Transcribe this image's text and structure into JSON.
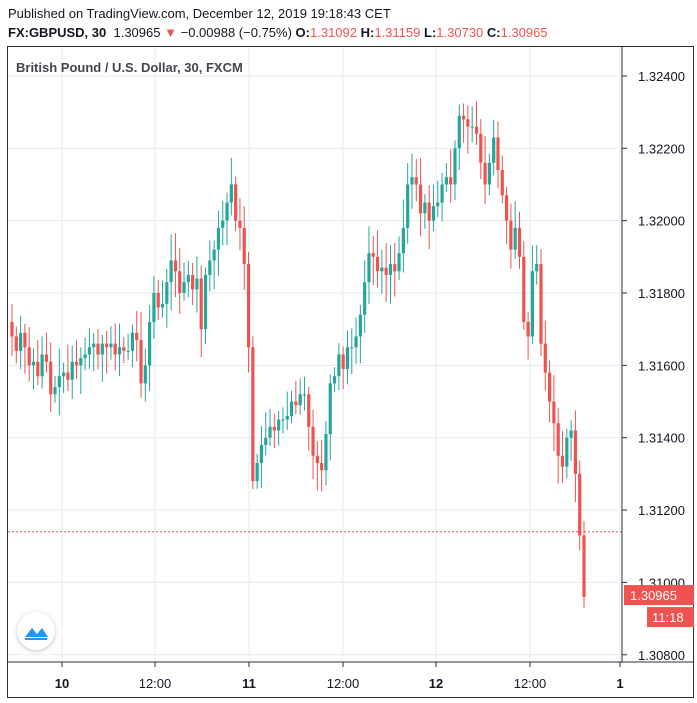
{
  "header": {
    "published": "Published on TradingView.com, December 12, 2019 19:18:43 CET",
    "symbol": "FX:GBPUSD, 30",
    "last": "1.30965",
    "arrow": "▼",
    "change": "−0.00988 (−0.75%)",
    "o_label": "O:",
    "o_value": "1.31092",
    "h_label": "H:",
    "h_value": "1.31159",
    "l_label": "L:",
    "l_value": "1.30730",
    "c_label": "C:",
    "c_value": "1.30965"
  },
  "chart_data": {
    "type": "candlestick",
    "title": "British Pound / U.S. Dollar, 30, FXCM",
    "ylim": [
      1.3078,
      1.3248
    ],
    "y_ticks": [
      "1.30800",
      "1.31000",
      "1.31200",
      "1.31400",
      "1.31600",
      "1.31800",
      "1.32000",
      "1.32200",
      "1.32400"
    ],
    "x_ticks": [
      "10",
      "12:00",
      "11",
      "12:00",
      "12",
      "12:00",
      "1"
    ],
    "price_line": 1.3114,
    "last_price_label": "1.30965",
    "countdown_label": "11:18",
    "colors": {
      "up": "#26a69a",
      "down": "#ef5350",
      "grid": "#e1ecf2",
      "text": "#131722"
    },
    "grid": true,
    "close_series": [
      1.3168,
      1.3164,
      1.3169,
      1.3165,
      1.316,
      1.3161,
      1.3157,
      1.3163,
      1.3161,
      1.3152,
      1.3154,
      1.3157,
      1.3158,
      1.3156,
      1.3161,
      1.316,
      1.3162,
      1.3163,
      1.3165,
      1.3166,
      1.3163,
      1.3166,
      1.3165,
      1.3166,
      1.3163,
      1.3165,
      1.3164,
      1.3164,
      1.3169,
      1.3167,
      1.3155,
      1.316,
      1.3172,
      1.318,
      1.3176,
      1.3177,
      1.3183,
      1.3189,
      1.3186,
      1.318,
      1.3183,
      1.3185,
      1.3181,
      1.3184,
      1.317,
      1.3185,
      1.3189,
      1.3192,
      1.3198,
      1.32,
      1.3205,
      1.321,
      1.32,
      1.3198,
      1.3188,
      1.3165,
      1.3128,
      1.3133,
      1.3138,
      1.314,
      1.3143,
      1.3142,
      1.3145,
      1.3145,
      1.3146,
      1.315,
      1.3149,
      1.3152,
      1.3152,
      1.3143,
      1.3135,
      1.3133,
      1.3131,
      1.3141,
      1.3155,
      1.3157,
      1.3163,
      1.3159,
      1.3165,
      1.3165,
      1.3168,
      1.3174,
      1.3183,
      1.3191,
      1.319,
      1.3186,
      1.3187,
      1.3185,
      1.3188,
      1.3186,
      1.3191,
      1.3198,
      1.321,
      1.3212,
      1.321,
      1.3202,
      1.3205,
      1.32,
      1.3204,
      1.3205,
      1.321,
      1.3212,
      1.321,
      1.322,
      1.3229,
      1.3228,
      1.3226,
      1.3226,
      1.3224,
      1.3216,
      1.321,
      1.3216,
      1.3223,
      1.3214,
      1.3207,
      1.32,
      1.3192,
      1.3198,
      1.319,
      1.3172,
      1.3168,
      1.3186,
      1.3188,
      1.3166,
      1.3158,
      1.315,
      1.3144,
      1.3135,
      1.3132,
      1.314,
      1.3142,
      1.313,
      1.3113,
      1.3096
    ]
  },
  "branding": {
    "logo_icon": "tradingview-logo-icon"
  }
}
